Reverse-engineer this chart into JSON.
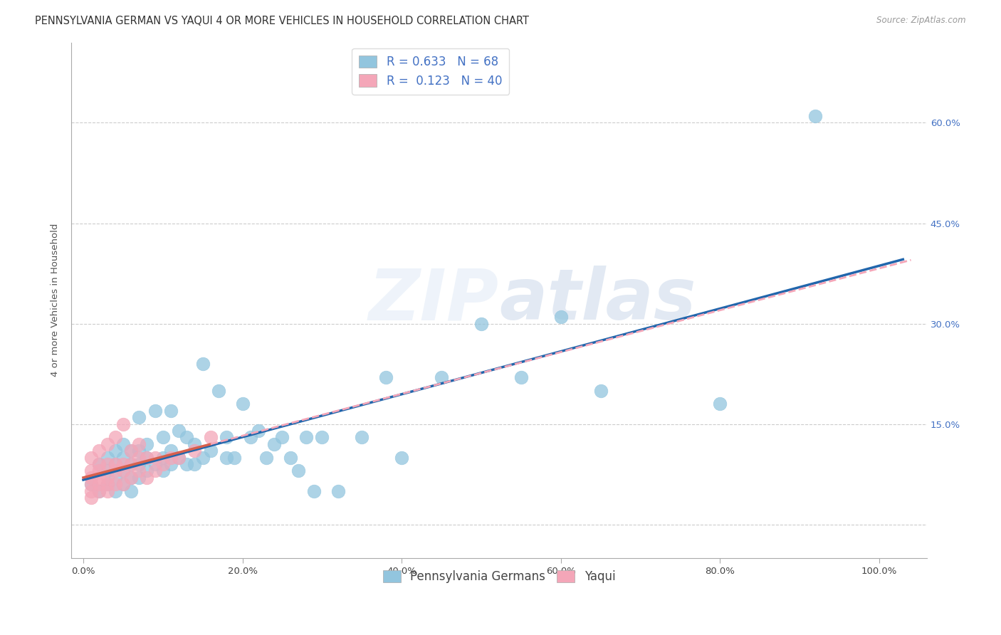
{
  "title": "PENNSYLVANIA GERMAN VS YAQUI 4 OR MORE VEHICLES IN HOUSEHOLD CORRELATION CHART",
  "source": "Source: ZipAtlas.com",
  "ylabel": "4 or more Vehicles in Household",
  "watermark": "ZIPAtlas",
  "xlim": [
    -0.015,
    1.06
  ],
  "ylim": [
    -0.05,
    0.72
  ],
  "xticks": [
    0.0,
    0.2,
    0.4,
    0.6,
    0.8,
    1.0
  ],
  "xticklabels": [
    "0.0%",
    "20.0%",
    "40.0%",
    "60.0%",
    "80.0%",
    "100.0%"
  ],
  "yticks": [
    0.0,
    0.15,
    0.3,
    0.45,
    0.6
  ],
  "yticklabels": [
    "",
    "15.0%",
    "30.0%",
    "45.0%",
    "60.0%"
  ],
  "legend1_label": "R = 0.633   N = 68",
  "legend2_label": "R =  0.123   N = 40",
  "blue_color": "#92c5de",
  "pink_color": "#f4a6b8",
  "blue_line_color": "#2166ac",
  "pink_line_color": "#d6604d",
  "pink_dash_color": "#f4a6b8",
  "grid_color": "#cccccc",
  "pa_german_x": [
    0.01,
    0.02,
    0.02,
    0.03,
    0.03,
    0.03,
    0.04,
    0.04,
    0.04,
    0.04,
    0.05,
    0.05,
    0.05,
    0.05,
    0.06,
    0.06,
    0.06,
    0.06,
    0.07,
    0.07,
    0.07,
    0.07,
    0.08,
    0.08,
    0.08,
    0.09,
    0.09,
    0.1,
    0.1,
    0.1,
    0.11,
    0.11,
    0.11,
    0.12,
    0.12,
    0.13,
    0.13,
    0.14,
    0.14,
    0.15,
    0.15,
    0.16,
    0.17,
    0.18,
    0.18,
    0.19,
    0.2,
    0.21,
    0.22,
    0.23,
    0.24,
    0.25,
    0.26,
    0.27,
    0.28,
    0.29,
    0.3,
    0.32,
    0.35,
    0.38,
    0.4,
    0.45,
    0.5,
    0.55,
    0.6,
    0.65,
    0.8,
    0.92
  ],
  "pa_german_y": [
    0.06,
    0.05,
    0.09,
    0.06,
    0.08,
    0.1,
    0.05,
    0.07,
    0.09,
    0.11,
    0.06,
    0.08,
    0.1,
    0.12,
    0.05,
    0.07,
    0.09,
    0.11,
    0.07,
    0.09,
    0.11,
    0.16,
    0.08,
    0.1,
    0.12,
    0.09,
    0.17,
    0.08,
    0.1,
    0.13,
    0.09,
    0.11,
    0.17,
    0.1,
    0.14,
    0.09,
    0.13,
    0.09,
    0.12,
    0.1,
    0.24,
    0.11,
    0.2,
    0.1,
    0.13,
    0.1,
    0.18,
    0.13,
    0.14,
    0.1,
    0.12,
    0.13,
    0.1,
    0.08,
    0.13,
    0.05,
    0.13,
    0.05,
    0.13,
    0.22,
    0.1,
    0.22,
    0.3,
    0.22,
    0.31,
    0.2,
    0.18,
    0.61
  ],
  "yaqui_x": [
    0.01,
    0.01,
    0.01,
    0.01,
    0.01,
    0.01,
    0.02,
    0.02,
    0.02,
    0.02,
    0.02,
    0.02,
    0.03,
    0.03,
    0.03,
    0.03,
    0.03,
    0.04,
    0.04,
    0.04,
    0.04,
    0.05,
    0.05,
    0.05,
    0.05,
    0.06,
    0.06,
    0.06,
    0.07,
    0.07,
    0.07,
    0.08,
    0.08,
    0.09,
    0.09,
    0.1,
    0.11,
    0.12,
    0.14,
    0.16
  ],
  "yaqui_y": [
    0.04,
    0.05,
    0.06,
    0.07,
    0.08,
    0.1,
    0.05,
    0.06,
    0.07,
    0.08,
    0.09,
    0.11,
    0.05,
    0.06,
    0.07,
    0.09,
    0.12,
    0.06,
    0.08,
    0.09,
    0.13,
    0.06,
    0.08,
    0.09,
    0.15,
    0.07,
    0.09,
    0.11,
    0.08,
    0.1,
    0.12,
    0.07,
    0.1,
    0.08,
    0.1,
    0.09,
    0.1,
    0.1,
    0.11,
    0.13
  ],
  "title_fontsize": 10.5,
  "axis_label_fontsize": 9.5,
  "tick_fontsize": 9.5,
  "legend_fontsize": 12
}
